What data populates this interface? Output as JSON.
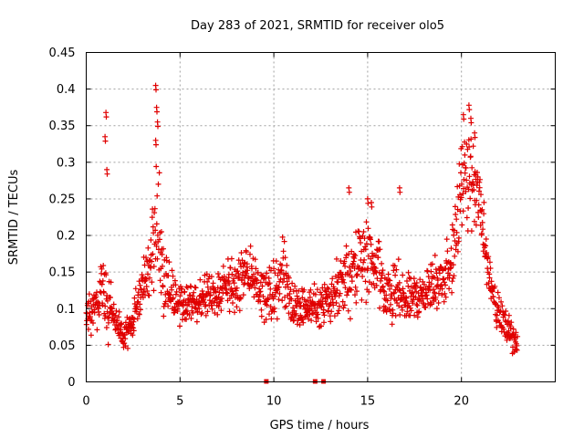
{
  "chart_data": {
    "type": "scatter",
    "title": "Day 283 of 2021, SRMTID for receiver olo5",
    "xlabel": "GPS time / hours",
    "ylabel": "SRMTID / TECUs",
    "xlim": [
      0,
      25
    ],
    "ylim": [
      0,
      0.45
    ],
    "xticks": [
      "0",
      "5",
      "10",
      "15",
      "20"
    ],
    "yticks": [
      "0",
      "0.05",
      "0.1",
      "0.15",
      "0.2",
      "0.25",
      "0.3",
      "0.35",
      "0.4",
      "0.45"
    ],
    "grid": true,
    "marker": "+",
    "color": "#e00000",
    "series": [
      {
        "name": "SRMTID",
        "profile": {
          "x": [
            0,
            0.5,
            1,
            1.5,
            2,
            2.5,
            3,
            3.5,
            3.8,
            4.2,
            5,
            6,
            7,
            8,
            8.5,
            9,
            10,
            10.5,
            11,
            12,
            13,
            13.5,
            14,
            14.5,
            15,
            15.5,
            16,
            16.5,
            17,
            18,
            19,
            19.5,
            20,
            20.5,
            21,
            21.5,
            22,
            22.5,
            23
          ],
          "center": [
            0.09,
            0.1,
            0.12,
            0.08,
            0.06,
            0.08,
            0.14,
            0.16,
            0.2,
            0.13,
            0.1,
            0.11,
            0.12,
            0.13,
            0.15,
            0.13,
            0.12,
            0.15,
            0.1,
            0.1,
            0.11,
            0.13,
            0.14,
            0.16,
            0.16,
            0.15,
            0.11,
            0.12,
            0.11,
            0.12,
            0.14,
            0.16,
            0.26,
            0.28,
            0.24,
            0.14,
            0.09,
            0.07,
            0.05
          ],
          "spread": [
            0.04,
            0.05,
            0.1,
            0.05,
            0.03,
            0.04,
            0.06,
            0.1,
            0.18,
            0.08,
            0.05,
            0.05,
            0.05,
            0.07,
            0.08,
            0.06,
            0.07,
            0.08,
            0.05,
            0.05,
            0.05,
            0.07,
            0.09,
            0.08,
            0.09,
            0.08,
            0.06,
            0.08,
            0.06,
            0.05,
            0.08,
            0.1,
            0.12,
            0.1,
            0.08,
            0.05,
            0.04,
            0.04,
            0.03
          ]
        },
        "peaks": [
          {
            "x": 1.05,
            "y": 0.368
          },
          {
            "x": 1.0,
            "y": 0.335
          },
          {
            "x": 1.1,
            "y": 0.29
          },
          {
            "x": 3.7,
            "y": 0.405
          },
          {
            "x": 3.75,
            "y": 0.375
          },
          {
            "x": 3.8,
            "y": 0.355
          },
          {
            "x": 3.7,
            "y": 0.33
          },
          {
            "x": 20.1,
            "y": 0.365
          },
          {
            "x": 20.4,
            "y": 0.378
          },
          {
            "x": 20.5,
            "y": 0.36
          },
          {
            "x": 20.7,
            "y": 0.34
          },
          {
            "x": 15.0,
            "y": 0.25
          },
          {
            "x": 15.2,
            "y": 0.245
          },
          {
            "x": 16.7,
            "y": 0.265
          },
          {
            "x": 14.0,
            "y": 0.265
          }
        ]
      }
    ],
    "gaps": [
      {
        "x": 9.6,
        "y": 0
      },
      {
        "x": 12.2,
        "y": 0
      },
      {
        "x": 12.65,
        "y": 0
      }
    ]
  }
}
